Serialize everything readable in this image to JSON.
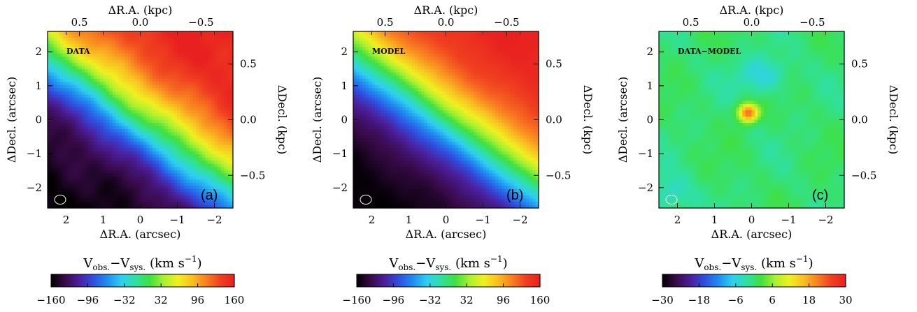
{
  "chart_data": [
    {
      "type": "heatmap",
      "panel_label": "(a)",
      "map_label": "DATA",
      "bottom_axis": {
        "label": "ΔR.A. (arcsec)",
        "ticks": [
          "2",
          "1",
          "0",
          "−1",
          "−2"
        ],
        "tick_values": [
          2,
          1,
          0,
          -1,
          -2
        ],
        "range": [
          2.5,
          -2.5
        ]
      },
      "top_axis": {
        "label": "ΔR.A. (kpc)",
        "ticks": [
          "0.5",
          "0.0",
          "−0.5"
        ],
        "tick_values": [
          0.5,
          0.0,
          -0.5
        ]
      },
      "left_axis": {
        "label": "ΔDecl. (arcsec)",
        "ticks": [
          "2",
          "1",
          "0",
          "−1",
          "−2"
        ],
        "tick_values": [
          2,
          1,
          0,
          -1,
          -2
        ],
        "range": [
          -2.6,
          2.6
        ]
      },
      "right_axis": {
        "label": "ΔDecl. (kpc)",
        "ticks": [
          "0.5",
          "0.0",
          "−0.5"
        ],
        "tick_values": [
          0.5,
          0.0,
          -0.5
        ]
      },
      "colorbar": {
        "label_main": "V",
        "label_sub1": "obs.",
        "label_mid": "−V",
        "label_sub2": "sys.",
        "label_unit": "(km s",
        "label_exp": "−1",
        "label_close": ")",
        "ticks": [
          "−160",
          "−96",
          "−32",
          "32",
          "96",
          "160"
        ],
        "tick_values": [
          -160,
          -96,
          -32,
          32,
          96,
          160
        ],
        "range": [
          -160,
          160
        ]
      },
      "field": "velocity_gradient",
      "value_range": [
        -160,
        160
      ]
    },
    {
      "type": "heatmap",
      "panel_label": "(b)",
      "map_label": "MODEL",
      "bottom_axis": {
        "label": "ΔR.A. (arcsec)",
        "ticks": [
          "2",
          "1",
          "0",
          "−1",
          "−2"
        ],
        "tick_values": [
          2,
          1,
          0,
          -1,
          -2
        ],
        "range": [
          2.5,
          -2.5
        ]
      },
      "top_axis": {
        "label": "ΔR.A. (kpc)",
        "ticks": [
          "0.5",
          "0.0",
          "−0.5"
        ],
        "tick_values": [
          0.5,
          0.0,
          -0.5
        ]
      },
      "left_axis": {
        "label": "ΔDecl. (arcsec)",
        "ticks": [
          "2",
          "1",
          "0",
          "−1",
          "−2"
        ],
        "tick_values": [
          2,
          1,
          0,
          -1,
          -2
        ],
        "range": [
          -2.6,
          2.6
        ]
      },
      "right_axis": {
        "label": "ΔDecl. (kpc)",
        "ticks": [
          "0.5",
          "0.0",
          "−0.5"
        ],
        "tick_values": [
          0.5,
          0.0,
          -0.5
        ]
      },
      "colorbar": {
        "label_main": "V",
        "label_sub1": "obs.",
        "label_mid": "−V",
        "label_sub2": "sys.",
        "label_unit": "(km s",
        "label_exp": "−1",
        "label_close": ")",
        "ticks": [
          "−160",
          "−96",
          "−32",
          "32",
          "96",
          "160"
        ],
        "tick_values": [
          -160,
          -96,
          -32,
          32,
          96,
          160
        ],
        "range": [
          -160,
          160
        ]
      },
      "field": "velocity_model",
      "value_range": [
        -160,
        160
      ]
    },
    {
      "type": "heatmap",
      "panel_label": "(c)",
      "map_label": "DATA−MODEL",
      "bottom_axis": {
        "label": "ΔR.A. (arcsec)",
        "ticks": [
          "2",
          "1",
          "0",
          "−1",
          "−2"
        ],
        "tick_values": [
          2,
          1,
          0,
          -1,
          -2
        ],
        "range": [
          2.5,
          -2.5
        ]
      },
      "top_axis": {
        "label": "ΔR.A. (kpc)",
        "ticks": [
          "0.5",
          "0.0",
          "−0.5"
        ],
        "tick_values": [
          0.5,
          0.0,
          -0.5
        ]
      },
      "left_axis": {
        "label": "ΔDecl. (arcsec)",
        "ticks": [
          "2",
          "1",
          "0",
          "−1",
          "−2"
        ],
        "tick_values": [
          2,
          1,
          0,
          -1,
          -2
        ],
        "range": [
          -2.6,
          2.6
        ]
      },
      "right_axis": {
        "label": "ΔDecl. (kpc)",
        "ticks": [
          "0.5",
          "0.0",
          "−0.5"
        ],
        "tick_values": [
          0.5,
          0.0,
          -0.5
        ]
      },
      "colorbar": {
        "label_main": "V",
        "label_sub1": "obs.",
        "label_mid": "−V",
        "label_sub2": "sys.",
        "label_unit": "(km s",
        "label_exp": "−1",
        "label_close": ")",
        "ticks": [
          "−30",
          "−18",
          "−6",
          "6",
          "18",
          "30"
        ],
        "tick_values": [
          -30,
          -18,
          -6,
          6,
          18,
          30
        ],
        "range": [
          -30,
          30
        ]
      },
      "field": "residual",
      "value_range": [
        -30,
        30
      ]
    }
  ],
  "colormap": [
    "#000000",
    "#3a0a4a",
    "#4b1f9a",
    "#2f4fe0",
    "#1f8ff0",
    "#2fd0f0",
    "#30e0a0",
    "#40e040",
    "#a8f030",
    "#f0f020",
    "#f8c020",
    "#f88020",
    "#f04020",
    "#e82020"
  ]
}
